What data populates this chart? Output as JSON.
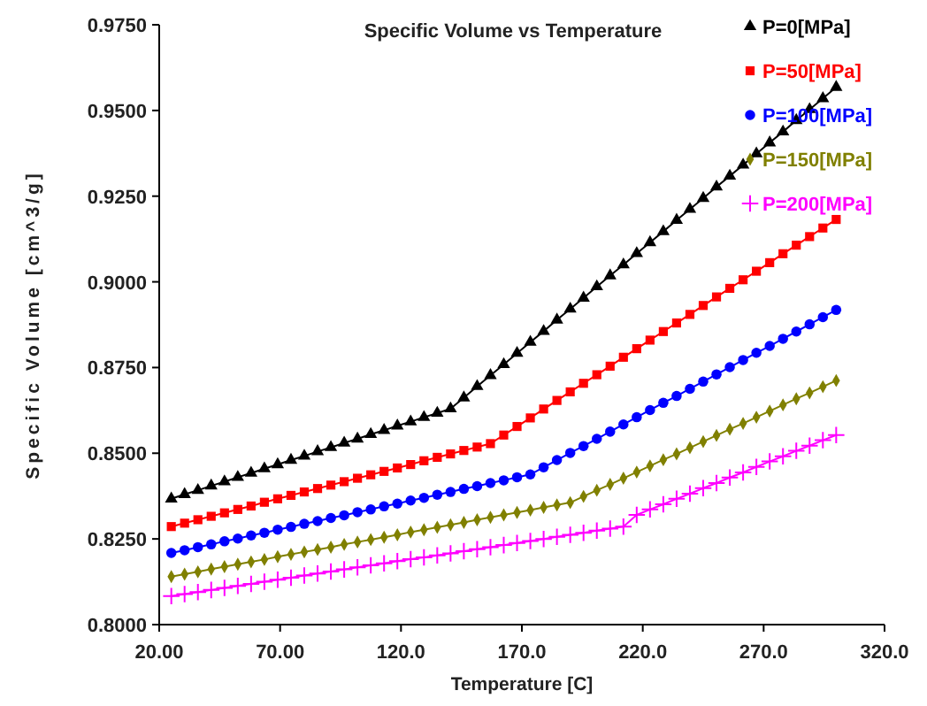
{
  "chart_data": {
    "type": "line",
    "title": "Specific Volume vs Temperature",
    "xlabel": "Temperature [C]",
    "ylabel": "Specific Volume [cm^3/g]",
    "x": [
      25,
      30.5,
      36,
      41.5,
      47,
      52.5,
      58,
      63.5,
      69,
      74.5,
      80,
      85.5,
      91,
      96.5,
      102,
      107.5,
      113,
      118.5,
      124,
      129.5,
      135,
      140.5,
      146,
      151.5,
      157,
      162.5,
      168,
      173.5,
      179,
      184.5,
      190,
      195.5,
      201,
      206.5,
      212,
      217.5,
      223,
      228.5,
      234,
      239.5,
      245,
      250.5,
      256,
      261.5,
      267,
      272.5,
      278,
      283.5,
      289,
      294.5,
      300
    ],
    "xlim": [
      20,
      320
    ],
    "xticks": [
      {
        "value": 20,
        "label": "20.00"
      },
      {
        "value": 70,
        "label": "70.00"
      },
      {
        "value": 120,
        "label": "120.0"
      },
      {
        "value": 170,
        "label": "170.0"
      },
      {
        "value": 220,
        "label": "220.0"
      },
      {
        "value": 270,
        "label": "270.0"
      },
      {
        "value": 320,
        "label": "320.0"
      }
    ],
    "ylim": [
      0.8,
      0.975
    ],
    "yticks": [
      {
        "value": 0.8,
        "label": "0.8000"
      },
      {
        "value": 0.825,
        "label": "0.8250"
      },
      {
        "value": 0.85,
        "label": "0.8500"
      },
      {
        "value": 0.875,
        "label": "0.8750"
      },
      {
        "value": 0.9,
        "label": "0.9000"
      },
      {
        "value": 0.925,
        "label": "0.9250"
      },
      {
        "value": 0.95,
        "label": "0.9500"
      },
      {
        "value": 0.975,
        "label": "0.9750"
      }
    ],
    "grid": false,
    "legend": "top right",
    "line_style": "solid",
    "series": [
      {
        "name": "P=0[MPa]",
        "color": "#000000",
        "marker": "triangle",
        "values": [
          0.8367,
          0.838,
          0.8392,
          0.8405,
          0.8417,
          0.843,
          0.8442,
          0.8455,
          0.8467,
          0.848,
          0.8492,
          0.8505,
          0.8517,
          0.853,
          0.8542,
          0.8555,
          0.8567,
          0.858,
          0.8592,
          0.8605,
          0.8617,
          0.863,
          0.8662,
          0.8695,
          0.8727,
          0.8759,
          0.8792,
          0.8824,
          0.8856,
          0.8889,
          0.8921,
          0.8953,
          0.8986,
          0.9018,
          0.905,
          0.9083,
          0.9115,
          0.9147,
          0.918,
          0.9212,
          0.9244,
          0.9277,
          0.9309,
          0.9341,
          0.9374,
          0.9406,
          0.9438,
          0.9471,
          0.9503,
          0.9535,
          0.9568
        ]
      },
      {
        "name": "P=50[MPa]",
        "color": "#ff0000",
        "marker": "square",
        "values": [
          0.8286,
          0.8296,
          0.8306,
          0.8316,
          0.8326,
          0.8336,
          0.8346,
          0.8357,
          0.8367,
          0.8377,
          0.8387,
          0.8397,
          0.8407,
          0.8417,
          0.8427,
          0.8437,
          0.8447,
          0.8457,
          0.8467,
          0.8478,
          0.8488,
          0.8498,
          0.8508,
          0.8518,
          0.8528,
          0.8553,
          0.8578,
          0.8603,
          0.8629,
          0.8654,
          0.8679,
          0.8704,
          0.8729,
          0.8754,
          0.878,
          0.8805,
          0.883,
          0.8855,
          0.888,
          0.8905,
          0.8931,
          0.8956,
          0.8981,
          0.9006,
          0.9031,
          0.9056,
          0.9082,
          0.9107,
          0.9132,
          0.9157,
          0.9182
        ]
      },
      {
        "name": "P=100[MPa]",
        "color": "#0000ff",
        "marker": "circle",
        "values": [
          0.8209,
          0.8217,
          0.8226,
          0.8234,
          0.8243,
          0.8251,
          0.826,
          0.8268,
          0.8277,
          0.8285,
          0.8294,
          0.8302,
          0.8311,
          0.8319,
          0.8328,
          0.8336,
          0.8345,
          0.8353,
          0.8362,
          0.837,
          0.8379,
          0.8387,
          0.8396,
          0.8404,
          0.8413,
          0.8421,
          0.843,
          0.8438,
          0.8459,
          0.848,
          0.8501,
          0.8521,
          0.8542,
          0.8563,
          0.8584,
          0.8605,
          0.8626,
          0.8647,
          0.8667,
          0.8688,
          0.8709,
          0.873,
          0.8751,
          0.8772,
          0.8793,
          0.8813,
          0.8834,
          0.8855,
          0.8876,
          0.8897,
          0.8918
        ]
      },
      {
        "name": "P=150[MPa]",
        "color": "#808000",
        "marker": "diamond",
        "values": [
          0.814,
          0.8147,
          0.8154,
          0.8162,
          0.8169,
          0.8176,
          0.8183,
          0.819,
          0.8198,
          0.8205,
          0.8212,
          0.8219,
          0.8226,
          0.8234,
          0.8241,
          0.8248,
          0.8255,
          0.8262,
          0.827,
          0.8277,
          0.8284,
          0.8291,
          0.8298,
          0.8306,
          0.8313,
          0.832,
          0.8327,
          0.8334,
          0.8342,
          0.8349,
          0.8356,
          0.8374,
          0.8392,
          0.8409,
          0.8427,
          0.8445,
          0.8463,
          0.8481,
          0.8498,
          0.8516,
          0.8534,
          0.8552,
          0.857,
          0.8587,
          0.8605,
          0.8623,
          0.8641,
          0.8659,
          0.8676,
          0.8694,
          0.8712
        ]
      },
      {
        "name": "P=200[MPa]",
        "color": "#ff00ff",
        "marker": "cross",
        "values": [
          0.8083,
          0.8089,
          0.8095,
          0.8101,
          0.8107,
          0.8113,
          0.8119,
          0.8125,
          0.8131,
          0.8137,
          0.8143,
          0.8149,
          0.8155,
          0.8161,
          0.8167,
          0.8173,
          0.8179,
          0.8185,
          0.8191,
          0.8196,
          0.8202,
          0.8208,
          0.8214,
          0.822,
          0.8226,
          0.8232,
          0.8238,
          0.8244,
          0.825,
          0.8256,
          0.8262,
          0.8268,
          0.8274,
          0.828,
          0.8286,
          0.832,
          0.8336,
          0.8351,
          0.8367,
          0.8382,
          0.8398,
          0.8413,
          0.8429,
          0.8444,
          0.846,
          0.8476,
          0.8491,
          0.8507,
          0.8522,
          0.8538,
          0.8553
        ]
      }
    ]
  }
}
